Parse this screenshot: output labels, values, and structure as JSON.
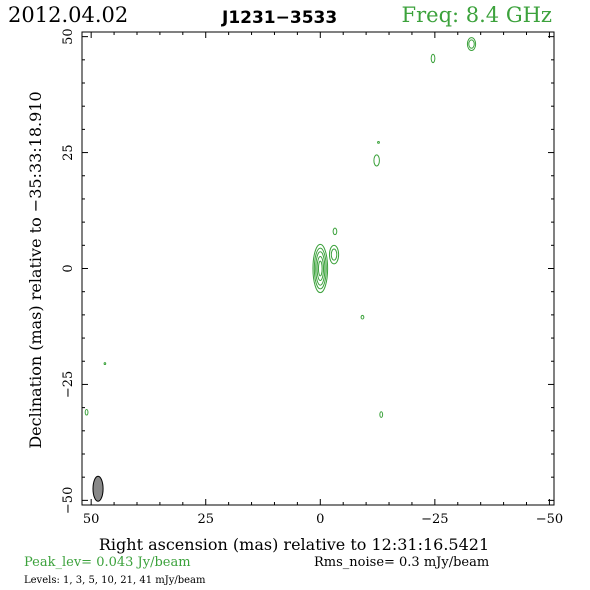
{
  "header": {
    "date": "2012.04.02",
    "source": "J1231−3533",
    "frequency": "Freq:  8.4  GHz"
  },
  "footer": {
    "peak": "Peak_lev=  0.043 Jy/beam",
    "rms": "Rms_noise=   0.3  mJy/beam",
    "levels": "Levels:   1,   3,   5,  10,  21,  41  mJy/beam"
  },
  "colors": {
    "contour": "#3ca23c",
    "beam": "#888888",
    "header_accent": "#3ca23c"
  },
  "chart_data": {
    "type": "contour",
    "xlabel": "Right ascension (mas) relative to 12:31:16.5421",
    "ylabel": "Declination (mas) relative to −35:33:18.910",
    "xlim": [
      52,
      -51
    ],
    "ylim": [
      -51,
      51
    ],
    "xticks": [
      50,
      25,
      0,
      -25,
      -50
    ],
    "xtick_labels": [
      "50",
      "25",
      "0",
      "−25",
      "−50"
    ],
    "yticks": [
      50,
      25,
      0,
      -25,
      -50
    ],
    "ytick_labels": [
      "50",
      "25",
      "0",
      "−25",
      "−50"
    ],
    "contour_levels_mJy": [
      1,
      3,
      5,
      10,
      21,
      41
    ],
    "components": [
      {
        "x": 0,
        "y": 0,
        "rx": [
          0.4,
          0.7,
          1.0,
          1.3,
          1.6
        ],
        "ry": [
          1.6,
          2.6,
          3.6,
          4.4,
          5.2
        ]
      },
      {
        "x": -3,
        "y": 3,
        "rx": [
          0.6,
          1.0
        ],
        "ry": [
          1.2,
          2.0
        ]
      },
      {
        "x": -3.2,
        "y": 8,
        "rx": [
          0.4
        ],
        "ry": [
          0.7
        ]
      },
      {
        "x": -9.2,
        "y": -10.5,
        "rx": [
          0.3
        ],
        "ry": [
          0.4
        ]
      },
      {
        "x": -12.3,
        "y": 23.3,
        "rx": [
          0.6
        ],
        "ry": [
          1.2
        ]
      },
      {
        "x": -12.7,
        "y": 27.2,
        "rx": [
          0.2
        ],
        "ry": [
          0.2
        ]
      },
      {
        "x": -13.3,
        "y": -31.5,
        "rx": [
          0.3
        ],
        "ry": [
          0.6
        ]
      },
      {
        "x": -24.6,
        "y": 45.3,
        "rx": [
          0.4
        ],
        "ry": [
          0.9
        ]
      },
      {
        "x": -33,
        "y": 48.4,
        "rx": [
          0.6,
          0.9
        ],
        "ry": [
          0.9,
          1.4
        ]
      },
      {
        "x": 51,
        "y": -31,
        "rx": [
          0.3
        ],
        "ry": [
          0.6
        ]
      },
      {
        "x": 47,
        "y": -20.5,
        "rx": [
          0.15
        ],
        "ry": [
          0.2
        ]
      }
    ],
    "beam": {
      "x": 48.5,
      "y": -47.5,
      "major": 5.4,
      "minor": 2.2,
      "pa_deg": 0
    }
  }
}
